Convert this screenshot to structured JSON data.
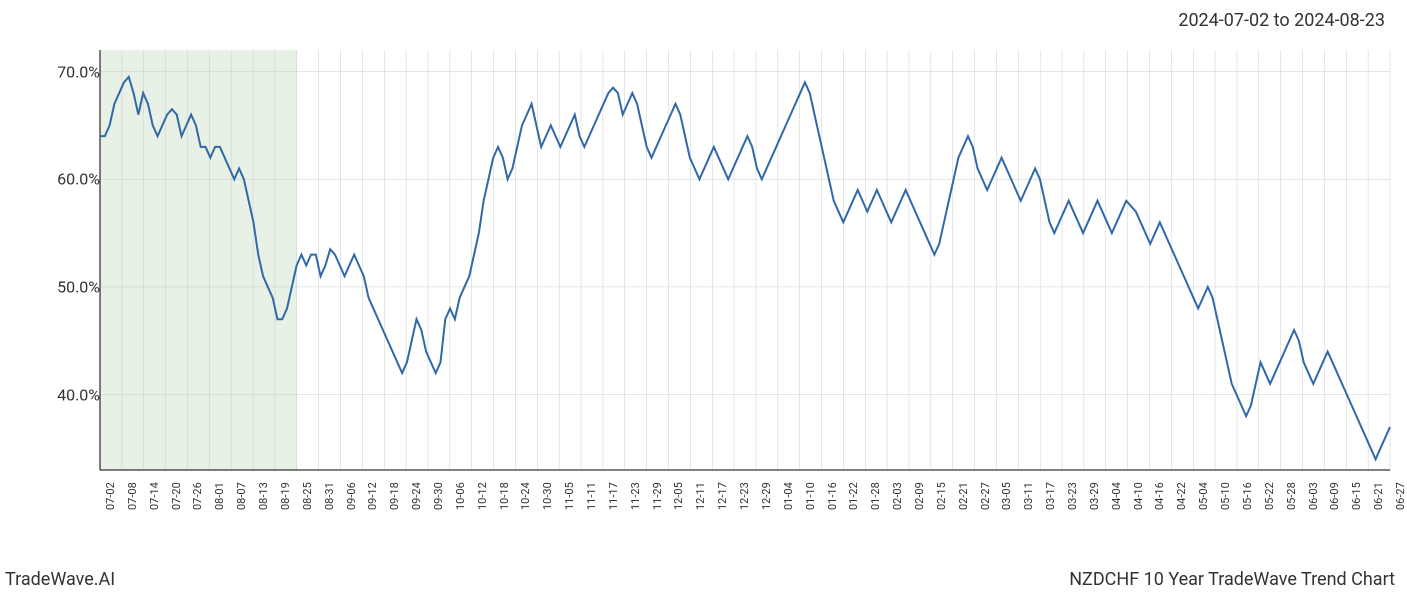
{
  "date_range": "2024-07-02 to 2024-08-23",
  "footer_left": "TradeWave.AI",
  "footer_right": "NZDCHF 10 Year TradeWave Trend Chart",
  "chart": {
    "type": "line",
    "line_color": "#3169a8",
    "line_width": 2,
    "background_color": "#ffffff",
    "highlight_fill": "#d9e8d4",
    "highlight_opacity": 0.6,
    "grid_color": "#cccccc",
    "grid_width": 0.5,
    "axis_color": "#000000",
    "text_color": "#333333",
    "y_axis": {
      "min": 33,
      "max": 72,
      "ticks": [
        40,
        50,
        60,
        70
      ],
      "tick_labels": [
        "40.0%",
        "50.0%",
        "60.0%",
        "70.0%"
      ],
      "label_fontsize": 16
    },
    "x_axis": {
      "ticks": [
        "07-02",
        "07-08",
        "07-14",
        "07-20",
        "07-26",
        "08-01",
        "08-07",
        "08-13",
        "08-19",
        "08-25",
        "08-31",
        "09-06",
        "09-12",
        "09-18",
        "09-24",
        "09-30",
        "10-06",
        "10-12",
        "10-18",
        "10-24",
        "10-30",
        "11-05",
        "11-11",
        "11-17",
        "11-23",
        "11-29",
        "12-05",
        "12-11",
        "12-17",
        "12-23",
        "12-29",
        "01-04",
        "01-10",
        "01-16",
        "01-22",
        "01-28",
        "02-03",
        "02-09",
        "02-15",
        "02-21",
        "02-27",
        "03-05",
        "03-11",
        "03-17",
        "03-23",
        "03-29",
        "04-04",
        "04-10",
        "04-16",
        "04-22",
        "05-04",
        "05-10",
        "05-16",
        "05-22",
        "05-28",
        "06-03",
        "06-09",
        "06-15",
        "06-21",
        "06-27"
      ],
      "label_fontsize": 11
    },
    "highlight_range": {
      "start_index": 0,
      "end_index": 9
    },
    "series": [
      64,
      64,
      65,
      67,
      68,
      69,
      69.5,
      68,
      66,
      68,
      67,
      65,
      64,
      65,
      66,
      66.5,
      66,
      64,
      65,
      66,
      65,
      63,
      63,
      62,
      63,
      63,
      62,
      61,
      60,
      61,
      60,
      58,
      56,
      53,
      51,
      50,
      49,
      47,
      47,
      48,
      50,
      52,
      53,
      52,
      53,
      53,
      51,
      52,
      53.5,
      53,
      52,
      51,
      52,
      53,
      52,
      51,
      49,
      48,
      47,
      46,
      45,
      44,
      43,
      42,
      43,
      45,
      47,
      46,
      44,
      43,
      42,
      43,
      47,
      48,
      47,
      49,
      50,
      51,
      53,
      55,
      58,
      60,
      62,
      63,
      62,
      60,
      61,
      63,
      65,
      66,
      67,
      65,
      63,
      64,
      65,
      64,
      63,
      64,
      65,
      66,
      64,
      63,
      64,
      65,
      66,
      67,
      68,
      68.5,
      68,
      66,
      67,
      68,
      67,
      65,
      63,
      62,
      63,
      64,
      65,
      66,
      67,
      66,
      64,
      62,
      61,
      60,
      61,
      62,
      63,
      62,
      61,
      60,
      61,
      62,
      63,
      64,
      63,
      61,
      60,
      61,
      62,
      63,
      64,
      65,
      66,
      67,
      68,
      69,
      68,
      66,
      64,
      62,
      60,
      58,
      57,
      56,
      57,
      58,
      59,
      58,
      57,
      58,
      59,
      58,
      57,
      56,
      57,
      58,
      59,
      58,
      57,
      56,
      55,
      54,
      53,
      54,
      56,
      58,
      60,
      62,
      63,
      64,
      63,
      61,
      60,
      59,
      60,
      61,
      62,
      61,
      60,
      59,
      58,
      59,
      60,
      61,
      60,
      58,
      56,
      55,
      56,
      57,
      58,
      57,
      56,
      55,
      56,
      57,
      58,
      57,
      56,
      55,
      56,
      57,
      58,
      57.5,
      57,
      56,
      55,
      54,
      55,
      56,
      55,
      54,
      53,
      52,
      51,
      50,
      49,
      48,
      49,
      50,
      49,
      47,
      45,
      43,
      41,
      40,
      39,
      38,
      39,
      41,
      43,
      42,
      41,
      42,
      43,
      44,
      45,
      46,
      45,
      43,
      42,
      41,
      42,
      43,
      44,
      43,
      42,
      41,
      40,
      39,
      38,
      37,
      36,
      35,
      34,
      35,
      36,
      37
    ]
  }
}
